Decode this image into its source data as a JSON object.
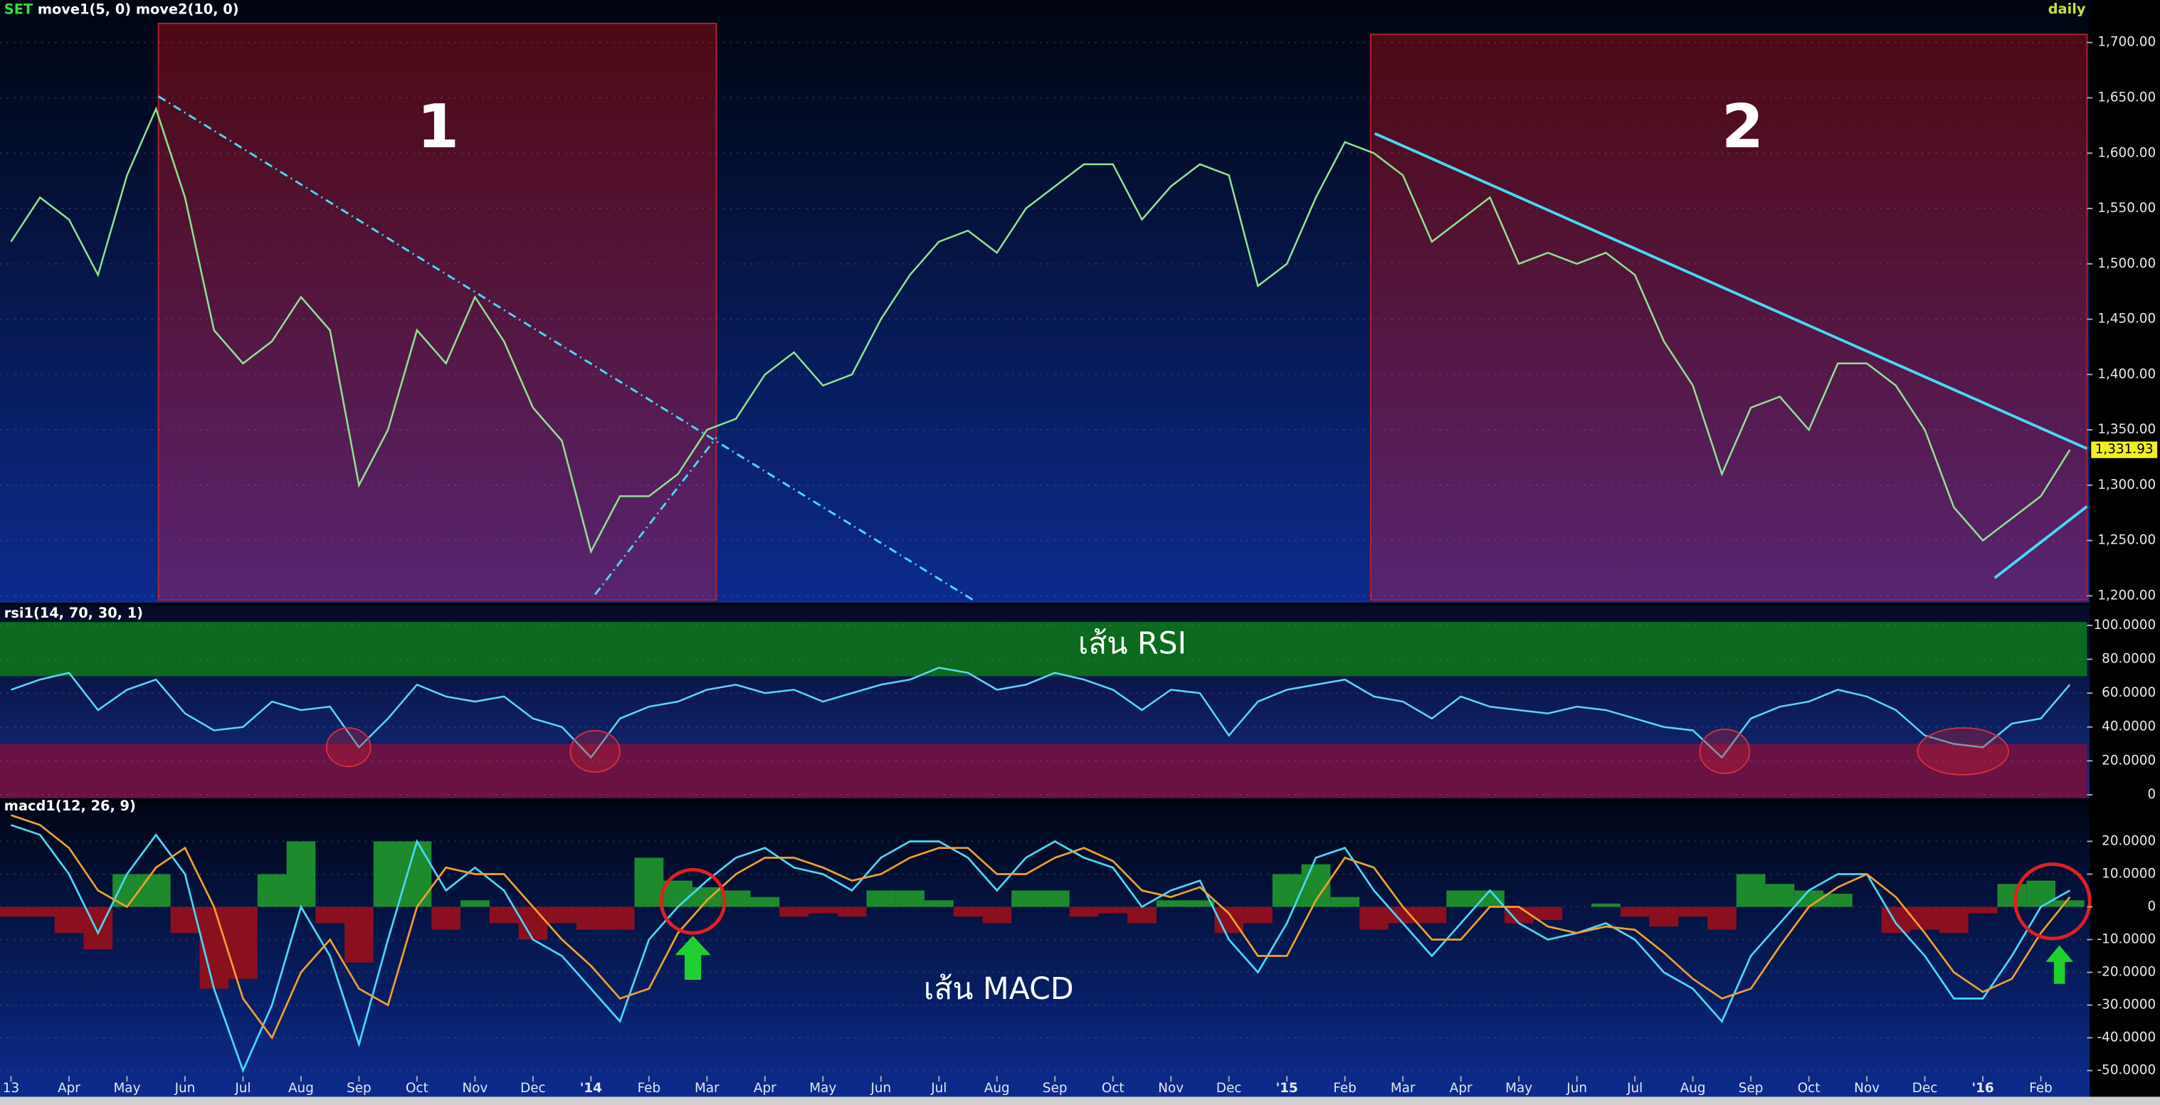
{
  "chart_data": [
    {
      "type": "line",
      "symbol": "SET",
      "title": "move1(5, 0) move2(10, 0)",
      "timeframe": "daily",
      "color": "#8fe28f",
      "grid": true,
      "values": [
        1520,
        1560,
        1540,
        1490,
        1580,
        1640,
        1560,
        1440,
        1410,
        1430,
        1470,
        1440,
        1300,
        1350,
        1440,
        1410,
        1470,
        1430,
        1370,
        1340,
        1240,
        1290,
        1290,
        1310,
        1350,
        1360,
        1400,
        1420,
        1390,
        1400,
        1450,
        1490,
        1520,
        1530,
        1510,
        1550,
        1570,
        1590,
        1590,
        1540,
        1570,
        1590,
        1580,
        1480,
        1500,
        1560,
        1610,
        1600,
        1580,
        1520,
        1540,
        1560,
        1500,
        1510,
        1500,
        1510,
        1490,
        1430,
        1390,
        1310,
        1370,
        1380,
        1350,
        1410,
        1410,
        1390,
        1350,
        1280,
        1250,
        1270,
        1290,
        1331.93
      ],
      "value_labels": [
        null,
        null,
        null,
        null,
        null,
        null,
        null,
        null,
        null,
        null,
        null,
        null,
        null,
        null,
        null,
        null,
        null,
        null,
        null,
        null,
        null,
        null,
        null,
        null,
        null,
        null,
        null,
        null,
        null,
        null,
        null,
        null,
        null,
        null,
        null,
        null,
        null,
        null,
        null,
        null,
        null,
        null,
        null,
        null,
        null,
        null,
        null,
        null,
        null,
        null,
        null,
        null,
        null,
        null,
        null,
        null,
        null,
        null,
        null,
        null,
        null,
        null,
        null,
        null,
        null,
        null,
        null,
        null,
        null,
        null,
        null,
        "1,331.93"
      ],
      "ylim": [
        1195,
        1721
      ],
      "yticks": [
        {
          "value": 1700,
          "label": "1,700.00"
        },
        {
          "value": 1650,
          "label": "1,650.00"
        },
        {
          "value": 1600,
          "label": "1,600.00"
        },
        {
          "value": 1550,
          "label": "1,550.00"
        },
        {
          "value": 1500,
          "label": "1,500.00"
        },
        {
          "value": 1450,
          "label": "1,450.00"
        },
        {
          "value": 1400,
          "label": "1,400.00"
        },
        {
          "value": 1350,
          "label": "1,350.00"
        },
        {
          "value": 1300,
          "label": "1,300.00"
        },
        {
          "value": 1250,
          "label": "1,250.00"
        },
        {
          "value": 1200,
          "label": "1,200.00"
        }
      ],
      "annotations": [
        "1",
        "2"
      ]
    },
    {
      "type": "line",
      "title": "rsi1(14, 70, 30, 1)",
      "color": "#5ad6f0",
      "grid": true,
      "overbought": 70,
      "oversold": 30,
      "overbought_color": "#0b6a1e",
      "oversold_color": "#6a1244",
      "values": [
        62,
        68,
        72,
        50,
        62,
        68,
        48,
        38,
        40,
        55,
        50,
        52,
        28,
        45,
        65,
        58,
        55,
        58,
        45,
        40,
        22,
        45,
        52,
        55,
        62,
        65,
        60,
        62,
        55,
        60,
        65,
        68,
        75,
        72,
        62,
        65,
        72,
        68,
        62,
        50,
        62,
        60,
        35,
        55,
        62,
        65,
        68,
        58,
        55,
        45,
        58,
        52,
        50,
        48,
        52,
        50,
        45,
        40,
        38,
        22,
        45,
        52,
        55,
        62,
        58,
        50,
        35,
        30,
        28,
        42,
        45,
        65
      ],
      "ylim": [
        -2,
        102
      ],
      "yticks": [
        {
          "value": 100,
          "label": "100.0000"
        },
        {
          "value": 80,
          "label": "80.0000"
        },
        {
          "value": 60,
          "label": "60.0000"
        },
        {
          "value": 40,
          "label": "40.0000"
        },
        {
          "value": 20,
          "label": "20.0000"
        },
        0
      ],
      "annotations": [
        "เส้น RSI"
      ]
    },
    {
      "type": "macd",
      "title": "macd1(12, 26, 9)",
      "grid": true,
      "categories": [
        "13",
        null,
        "Apr",
        null,
        "May",
        null,
        "Jun",
        null,
        "Jul",
        null,
        "Aug",
        null,
        "Sep",
        null,
        "Oct",
        null,
        "Nov",
        null,
        "Dec",
        null,
        "'14",
        null,
        "Feb",
        null,
        "Mar",
        null,
        "Apr",
        null,
        "May",
        null,
        "Jun",
        null,
        "Jul",
        null,
        "Aug",
        null,
        "Sep",
        null,
        "Oct",
        null,
        "Nov",
        null,
        "Dec",
        null,
        "'15",
        null,
        "Feb",
        null,
        "Mar",
        null,
        "Apr",
        null,
        "May",
        null,
        "Jun",
        null,
        "Jul",
        null,
        "Aug",
        null,
        "Sep",
        null,
        "Oct",
        null,
        "Nov",
        null,
        "Dec",
        null,
        "'16",
        null,
        "Feb",
        null
      ],
      "series": [
        {
          "kind": "line",
          "color": "#49d8f5",
          "values": [
            25,
            22,
            10,
            -8,
            10,
            22,
            10,
            -25,
            -50,
            -30,
            0,
            -15,
            -42,
            -10,
            20,
            5,
            12,
            5,
            -10,
            -15,
            -25,
            -35,
            -10,
            0,
            8,
            15,
            18,
            12,
            10,
            5,
            15,
            20,
            20,
            15,
            5,
            15,
            20,
            15,
            12,
            0,
            5,
            8,
            -10,
            -20,
            -5,
            15,
            18,
            5,
            -5,
            -15,
            -5,
            5,
            -5,
            -10,
            -8,
            -5,
            -10,
            -20,
            -25,
            -35,
            -15,
            -5,
            5,
            10,
            10,
            -5,
            -15,
            -28,
            -28,
            -15,
            0,
            5
          ]
        },
        {
          "kind": "line",
          "color": "#f0a030",
          "values": [
            28,
            25,
            18,
            5,
            0,
            12,
            18,
            0,
            -28,
            -40,
            -20,
            -10,
            -25,
            -30,
            0,
            12,
            10,
            10,
            0,
            -10,
            -18,
            -28,
            -25,
            -8,
            2,
            10,
            15,
            15,
            12,
            8,
            10,
            15,
            18,
            18,
            10,
            10,
            15,
            18,
            14,
            5,
            3,
            6,
            -2,
            -15,
            -15,
            2,
            15,
            12,
            0,
            -10,
            -10,
            0,
            0,
            -6,
            -8,
            -6,
            -7,
            -14,
            -22,
            -28,
            -25,
            -12,
            0,
            6,
            10,
            3,
            -8,
            -20,
            -26,
            -22,
            -8,
            3
          ]
        },
        {
          "kind": "histogram",
          "color": "#1e8a2e",
          "negative_color": "#8a1020",
          "values": [
            -3,
            -3,
            -8,
            -13,
            10,
            10,
            -8,
            -25,
            -22,
            10,
            20,
            -5,
            -17,
            20,
            20,
            -7,
            2,
            -5,
            -10,
            -5,
            -7,
            -7,
            15,
            8,
            6,
            5,
            3,
            -3,
            -2,
            -3,
            5,
            5,
            2,
            -3,
            -5,
            5,
            5,
            -3,
            -2,
            -5,
            2,
            2,
            -8,
            -5,
            10,
            13,
            3,
            -7,
            -5,
            -5,
            5,
            5,
            -5,
            -4,
            0,
            1,
            -3,
            -6,
            -3,
            -7,
            10,
            7,
            5,
            4,
            0,
            -8,
            -7,
            -8,
            -2,
            7,
            8,
            2
          ]
        }
      ],
      "ylim": [
        -58,
        29
      ],
      "yticks": [
        {
          "value": 20,
          "label": "20.0000"
        },
        {
          "value": 10,
          "label": "10.0000"
        },
        0,
        {
          "value": -10,
          "label": "-10.0000"
        },
        {
          "value": -20,
          "label": "-20.0000"
        },
        {
          "value": -30,
          "label": "-30.0000"
        },
        {
          "value": -40,
          "label": "-40.0000"
        },
        {
          "value": -50,
          "label": "-50.0000"
        }
      ],
      "annotations": [
        "เส้น MACD"
      ]
    }
  ]
}
